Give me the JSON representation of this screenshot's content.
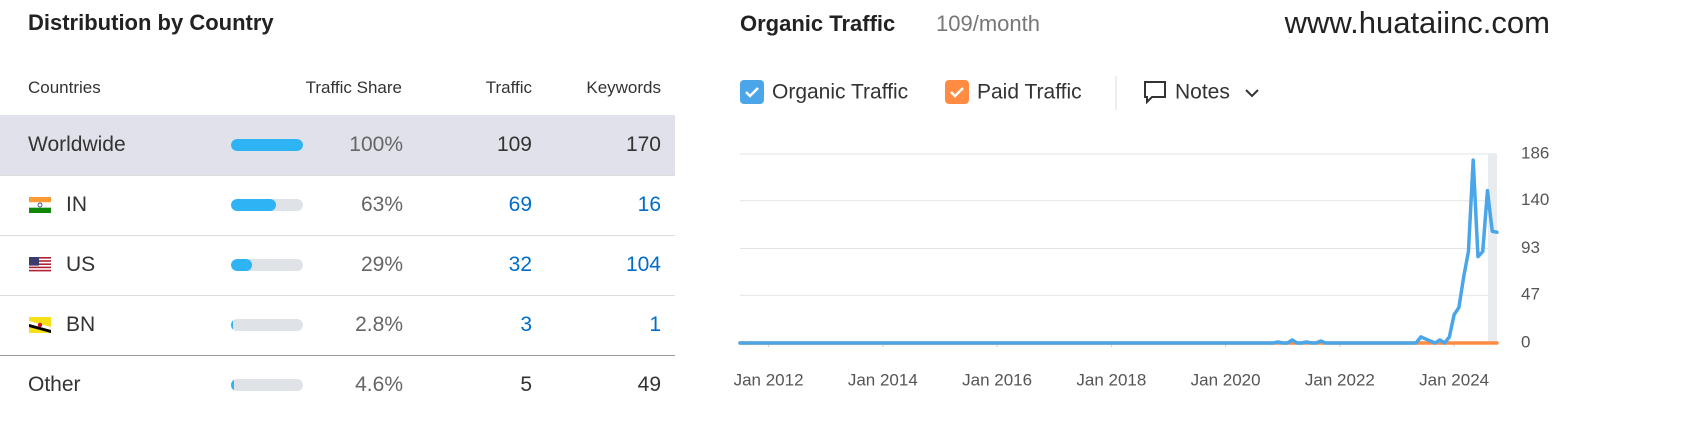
{
  "watermark": "www.huataiinc.com",
  "distribution": {
    "title": "Distribution by Country",
    "columns": [
      "Countries",
      "Traffic Share",
      "Traffic",
      "Keywords"
    ],
    "rows": [
      {
        "country": "Worldwide",
        "share": 100,
        "share_label": "100%",
        "traffic": 109,
        "keywords": 170
      },
      {
        "country": "IN",
        "share": 63,
        "share_label": "63%",
        "traffic": 69,
        "keywords": 16
      },
      {
        "country": "US",
        "share": 29,
        "share_label": "29%",
        "traffic": 32,
        "keywords": 104
      },
      {
        "country": "BN",
        "share": 2.8,
        "share_label": "2.8%",
        "traffic": 3,
        "keywords": 1
      },
      {
        "country": "Other",
        "share": 4.6,
        "share_label": "4.6%",
        "traffic": 5,
        "keywords": 49
      }
    ]
  },
  "chart_data": {
    "type": "line",
    "title": "Organic Traffic",
    "subtitle": "109/month",
    "notes": "Notes",
    "grid": true,
    "y_axis_side": "right",
    "xlim": [
      "2011-07",
      "2024-10"
    ],
    "xticks": [
      {
        "value": "2012-01",
        "label": "Jan 2012"
      },
      {
        "value": "2014-01",
        "label": "Jan 2014"
      },
      {
        "value": "2016-01",
        "label": "Jan 2016"
      },
      {
        "value": "2018-01",
        "label": "Jan 2018"
      },
      {
        "value": "2020-01",
        "label": "Jan 2020"
      },
      {
        "value": "2022-01",
        "label": "Jan 2022"
      },
      {
        "value": "2024-01",
        "label": "Jan 2024"
      }
    ],
    "ylim": [
      0,
      186
    ],
    "yticks": [
      0,
      47,
      93,
      140,
      186
    ],
    "x": [
      "2011-07",
      "2011-08",
      "2011-09",
      "2011-10",
      "2011-11",
      "2011-12",
      "2012-01",
      "2012-02",
      "2012-03",
      "2012-04",
      "2012-05",
      "2012-06",
      "2012-07",
      "2012-08",
      "2012-09",
      "2012-10",
      "2012-11",
      "2012-12",
      "2013-01",
      "2013-02",
      "2013-03",
      "2013-04",
      "2013-05",
      "2013-06",
      "2013-07",
      "2013-08",
      "2013-09",
      "2013-10",
      "2013-11",
      "2013-12",
      "2014-01",
      "2014-02",
      "2014-03",
      "2014-04",
      "2014-05",
      "2014-06",
      "2014-07",
      "2014-08",
      "2014-09",
      "2014-10",
      "2014-11",
      "2014-12",
      "2015-01",
      "2015-02",
      "2015-03",
      "2015-04",
      "2015-05",
      "2015-06",
      "2015-07",
      "2015-08",
      "2015-09",
      "2015-10",
      "2015-11",
      "2015-12",
      "2016-01",
      "2016-02",
      "2016-03",
      "2016-04",
      "2016-05",
      "2016-06",
      "2016-07",
      "2016-08",
      "2016-09",
      "2016-10",
      "2016-11",
      "2016-12",
      "2017-01",
      "2017-02",
      "2017-03",
      "2017-04",
      "2017-05",
      "2017-06",
      "2017-07",
      "2017-08",
      "2017-09",
      "2017-10",
      "2017-11",
      "2017-12",
      "2018-01",
      "2018-02",
      "2018-03",
      "2018-04",
      "2018-05",
      "2018-06",
      "2018-07",
      "2018-08",
      "2018-09",
      "2018-10",
      "2018-11",
      "2018-12",
      "2019-01",
      "2019-02",
      "2019-03",
      "2019-04",
      "2019-05",
      "2019-06",
      "2019-07",
      "2019-08",
      "2019-09",
      "2019-10",
      "2019-11",
      "2019-12",
      "2020-01",
      "2020-02",
      "2020-03",
      "2020-04",
      "2020-05",
      "2020-06",
      "2020-07",
      "2020-08",
      "2020-09",
      "2020-10",
      "2020-11",
      "2020-12",
      "2021-01",
      "2021-02",
      "2021-03",
      "2021-04",
      "2021-05",
      "2021-06",
      "2021-07",
      "2021-08",
      "2021-09",
      "2021-10",
      "2021-11",
      "2021-12",
      "2022-01",
      "2022-02",
      "2022-03",
      "2022-04",
      "2022-05",
      "2022-06",
      "2022-07",
      "2022-08",
      "2022-09",
      "2022-10",
      "2022-11",
      "2022-12",
      "2023-01",
      "2023-02",
      "2023-03",
      "2023-04",
      "2023-05",
      "2023-06",
      "2023-07",
      "2023-08",
      "2023-09",
      "2023-10",
      "2023-11",
      "2023-12",
      "2024-01",
      "2024-02",
      "2024-03",
      "2024-04",
      "2024-05",
      "2024-06",
      "2024-07",
      "2024-08",
      "2024-09",
      "2024-10"
    ],
    "series": [
      {
        "name": "Paid Traffic",
        "color": "#ff8c42",
        "values": [
          0,
          0,
          0,
          0,
          0,
          0,
          0,
          0,
          0,
          0,
          0,
          0,
          0,
          0,
          0,
          0,
          0,
          0,
          0,
          0,
          0,
          0,
          0,
          0,
          0,
          0,
          0,
          0,
          0,
          0,
          0,
          0,
          0,
          0,
          0,
          0,
          0,
          0,
          0,
          0,
          0,
          0,
          0,
          0,
          0,
          0,
          0,
          0,
          0,
          0,
          0,
          0,
          0,
          0,
          0,
          0,
          0,
          0,
          0,
          0,
          0,
          0,
          0,
          0,
          0,
          0,
          0,
          0,
          0,
          0,
          0,
          0,
          0,
          0,
          0,
          0,
          0,
          0,
          0,
          0,
          0,
          0,
          0,
          0,
          0,
          0,
          0,
          0,
          0,
          0,
          0,
          0,
          0,
          0,
          0,
          0,
          0,
          0,
          0,
          0,
          0,
          0,
          0,
          0,
          0,
          0,
          0,
          0,
          0,
          0,
          0,
          0,
          0,
          0,
          0,
          0,
          0,
          0,
          0,
          0,
          0,
          0,
          0,
          0,
          0,
          0,
          0,
          0,
          0,
          0,
          0,
          0,
          0,
          0,
          0,
          0,
          0,
          0,
          0,
          0,
          0,
          0,
          0,
          0,
          0,
          0,
          0,
          0,
          0,
          0,
          0,
          0,
          0,
          0,
          0,
          0,
          0,
          0,
          0,
          0
        ]
      },
      {
        "name": "Organic Traffic",
        "color": "#4aa6e8",
        "values": [
          0,
          0,
          0,
          0,
          0,
          0,
          0,
          0,
          0,
          0,
          0,
          0,
          0,
          0,
          0,
          0,
          0,
          0,
          0,
          0,
          0,
          0,
          0,
          0,
          0,
          0,
          0,
          0,
          0,
          0,
          0,
          0,
          0,
          0,
          0,
          0,
          0,
          0,
          0,
          0,
          0,
          0,
          0,
          0,
          0,
          0,
          0,
          0,
          0,
          0,
          0,
          0,
          0,
          0,
          0,
          0,
          0,
          0,
          0,
          0,
          0,
          0,
          0,
          0,
          0,
          0,
          0,
          0,
          0,
          0,
          0,
          0,
          0,
          0,
          0,
          0,
          0,
          0,
          0,
          0,
          0,
          0,
          0,
          0,
          0,
          0,
          0,
          0,
          0,
          0,
          0,
          0,
          0,
          0,
          0,
          0,
          0,
          0,
          0,
          0,
          0,
          0,
          0,
          0,
          0,
          0,
          0,
          0,
          0,
          0,
          0,
          0,
          0,
          1,
          0,
          0,
          3,
          0,
          0,
          1,
          0,
          0,
          2,
          0,
          0,
          0,
          0,
          0,
          0,
          0,
          0,
          0,
          0,
          0,
          0,
          0,
          0,
          0,
          0,
          0,
          0,
          0,
          0,
          6,
          4,
          2,
          0,
          3,
          0,
          6,
          28,
          35,
          65,
          90,
          180,
          85,
          90,
          150,
          110,
          109
        ]
      }
    ]
  }
}
